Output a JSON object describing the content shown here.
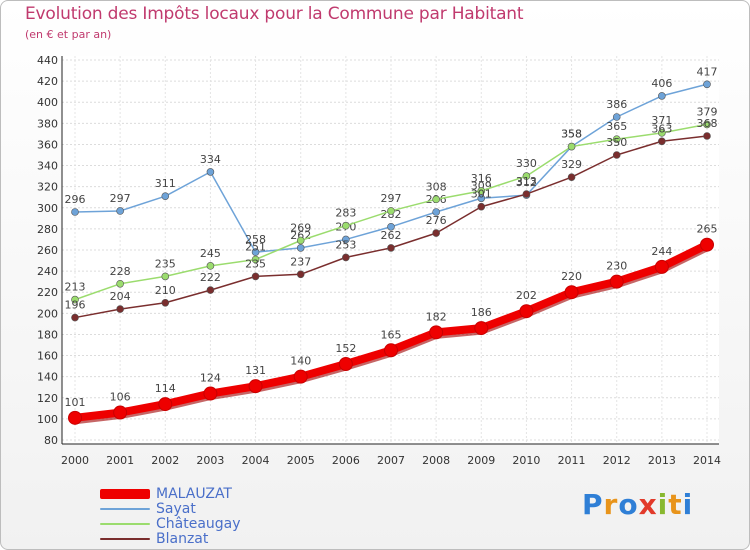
{
  "header": {
    "title": "Evolution des Impôts locaux pour la Commune par Habitant",
    "subtitle": "(en € et par an)"
  },
  "logo": {
    "text": "Proxiti",
    "colors": [
      "#2f7fd6",
      "#e8941b",
      "#2f7fd6",
      "#e23a2a",
      "#88b82f",
      "#e8941b",
      "#2f7fd6"
    ]
  },
  "chart_data": {
    "type": "line",
    "title": "Evolution des Impôts locaux pour la Commune par Habitant",
    "subtitle": "(en € et par an)",
    "xlabel": "",
    "ylabel": "",
    "x": [
      "2000",
      "2001",
      "2002",
      "2003",
      "2004",
      "2005",
      "2006",
      "2007",
      "2008",
      "2009",
      "2010",
      "2011",
      "2012",
      "2013",
      "2014"
    ],
    "ylim": [
      80,
      440
    ],
    "ytick_step": 20,
    "grid": true,
    "legend_position": "bottom-left",
    "series": [
      {
        "name": "MALAUZAT",
        "color": "#ee0000",
        "values": [
          101,
          106,
          114,
          124,
          131,
          140,
          152,
          165,
          182,
          186,
          202,
          220,
          230,
          244,
          265
        ],
        "labels": [
          "101",
          "106",
          "114",
          "124",
          "131",
          "140",
          "152",
          "165",
          "182",
          "186",
          "202",
          "220",
          "230",
          "244",
          "265"
        ]
      },
      {
        "name": "Sayat",
        "color": "#6ea3d8",
        "values": [
          296,
          297,
          311,
          334,
          258,
          262,
          270,
          282,
          296,
          309,
          312,
          358,
          386,
          406,
          417
        ],
        "labels": [
          "296",
          "297",
          "311",
          "334",
          "258",
          "262",
          "270",
          "282",
          "296",
          "309",
          "312",
          "358",
          "386",
          "406",
          "417"
        ]
      },
      {
        "name": "Châteaugay",
        "color": "#9bdc6e",
        "values": [
          213,
          228,
          235,
          245,
          251,
          269,
          283,
          297,
          308,
          316,
          330,
          358,
          365,
          371,
          379
        ],
        "labels": [
          "213",
          "228",
          "235",
          "245",
          "251",
          "269",
          "283",
          "297",
          "308",
          "316",
          "330",
          "358",
          "365",
          "371",
          "379"
        ]
      },
      {
        "name": "Blanzat",
        "color": "#7a2e2e",
        "values": [
          196,
          204,
          210,
          222,
          235,
          237,
          253,
          262,
          276,
          301,
          313,
          329,
          350,
          363,
          368
        ],
        "labels": [
          "196",
          "204",
          "210",
          "222",
          "235",
          "237",
          "253",
          "262",
          "276",
          "301",
          "313",
          "329",
          "350",
          "363",
          "368"
        ]
      }
    ]
  }
}
